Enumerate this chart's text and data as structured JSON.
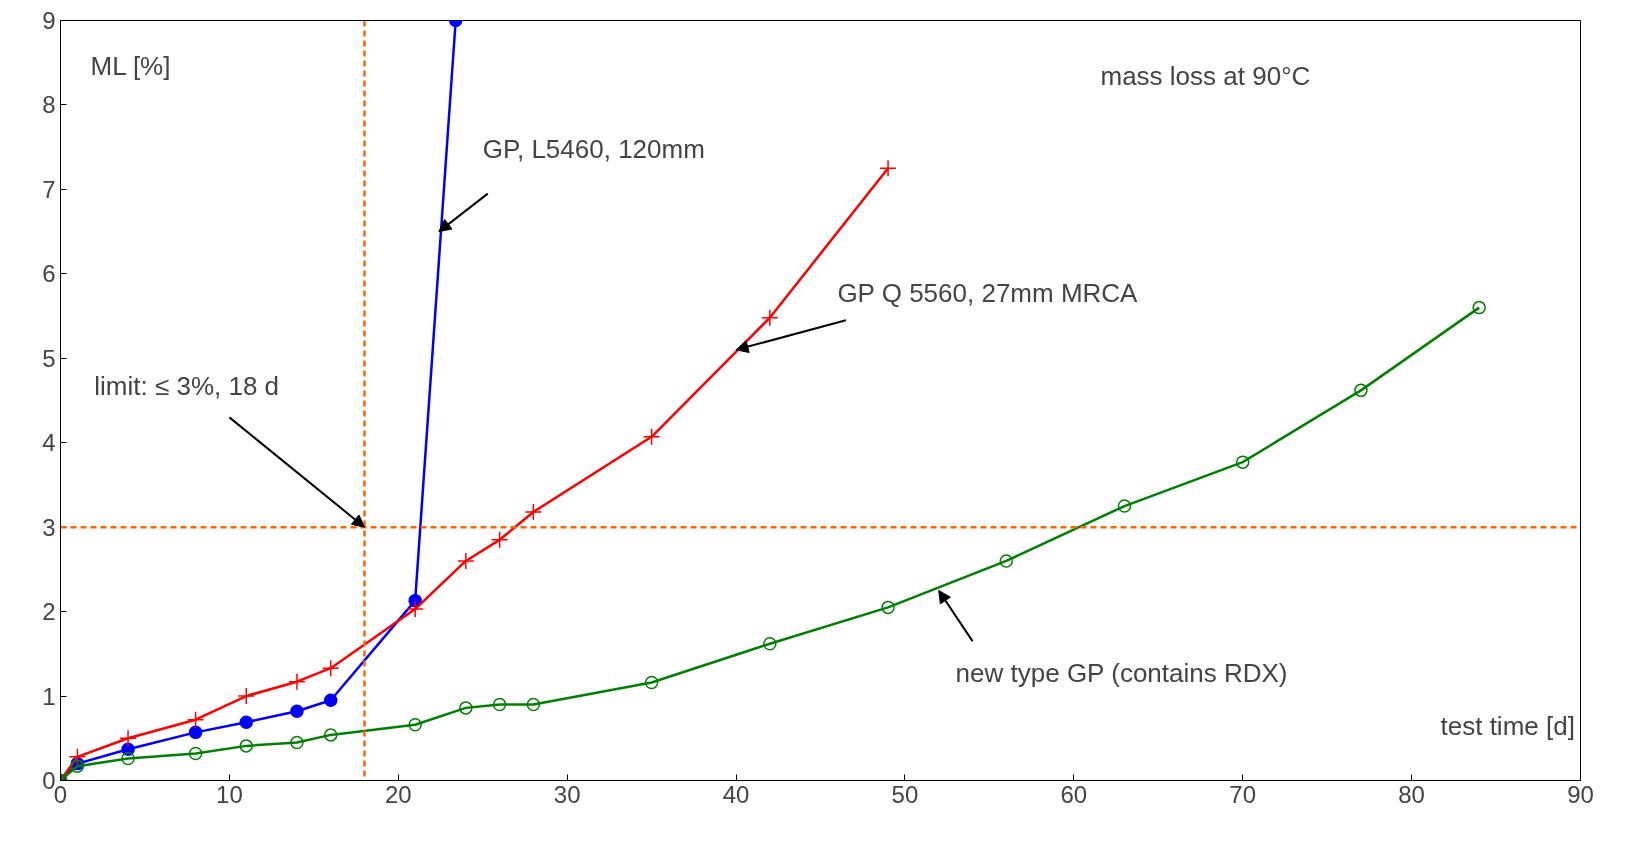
{
  "chart_data": {
    "type": "line",
    "title": "mass loss at 90°C",
    "xlabel": "test time [d]",
    "ylabel": "ML [%]",
    "xlim": [
      0,
      90
    ],
    "ylim": [
      0,
      9
    ],
    "xticks": [
      0,
      10,
      20,
      30,
      40,
      50,
      60,
      70,
      80,
      90
    ],
    "yticks": [
      0,
      1,
      2,
      3,
      4,
      5,
      6,
      7,
      8,
      9
    ],
    "grid": false,
    "series": [
      {
        "color": "#0000ff",
        "marker": "circle",
        "x": [
          0,
          1,
          4,
          8,
          11,
          14,
          16,
          21,
          23.4
        ],
        "values": [
          0,
          0.2,
          0.37,
          0.57,
          0.69,
          0.82,
          0.95,
          2.13,
          9
        ]
      },
      {
        "color": "#ff0000",
        "marker": "cross",
        "x": [
          0,
          1,
          4,
          8,
          11,
          14,
          16,
          21,
          24,
          26,
          28,
          35,
          42,
          49
        ],
        "values": [
          0,
          0.28,
          0.5,
          0.72,
          1.0,
          1.17,
          1.33,
          2.03,
          2.6,
          2.85,
          3.18,
          4.07,
          5.48,
          7.25
        ]
      },
      {
        "color": "#008000",
        "marker": "circle",
        "x": [
          0,
          1,
          4,
          8,
          11,
          14,
          16,
          21,
          24,
          26,
          28,
          35,
          42,
          49,
          56,
          63,
          70,
          77,
          84
        ],
        "values": [
          0,
          0.17,
          0.26,
          0.32,
          0.41,
          0.45,
          0.54,
          0.66,
          0.86,
          0.9,
          0.9,
          1.16,
          1.62,
          2.05,
          2.6,
          3.25,
          3.77,
          4.62,
          5.6
        ]
      }
    ],
    "ref_lines": [
      {
        "axis": "y",
        "value": 3,
        "color": "#ff6600",
        "line_style": "dashed"
      },
      {
        "axis": "x",
        "value": 18,
        "color": "#ff6600",
        "line_style": "dashed"
      }
    ],
    "annotations": [
      {
        "text": "GP, L5460, 120mm",
        "x": 22.4,
        "y": 6.5
      },
      {
        "text": "GP Q 5560, 27mm MRCA",
        "x": 40,
        "y": 5.1
      },
      {
        "text": "new type GP (contains RDX)",
        "x": 52,
        "y": 2.25
      },
      {
        "text": "limit: ≤ 3%, 18 d",
        "x": 18,
        "y": 3
      }
    ]
  }
}
